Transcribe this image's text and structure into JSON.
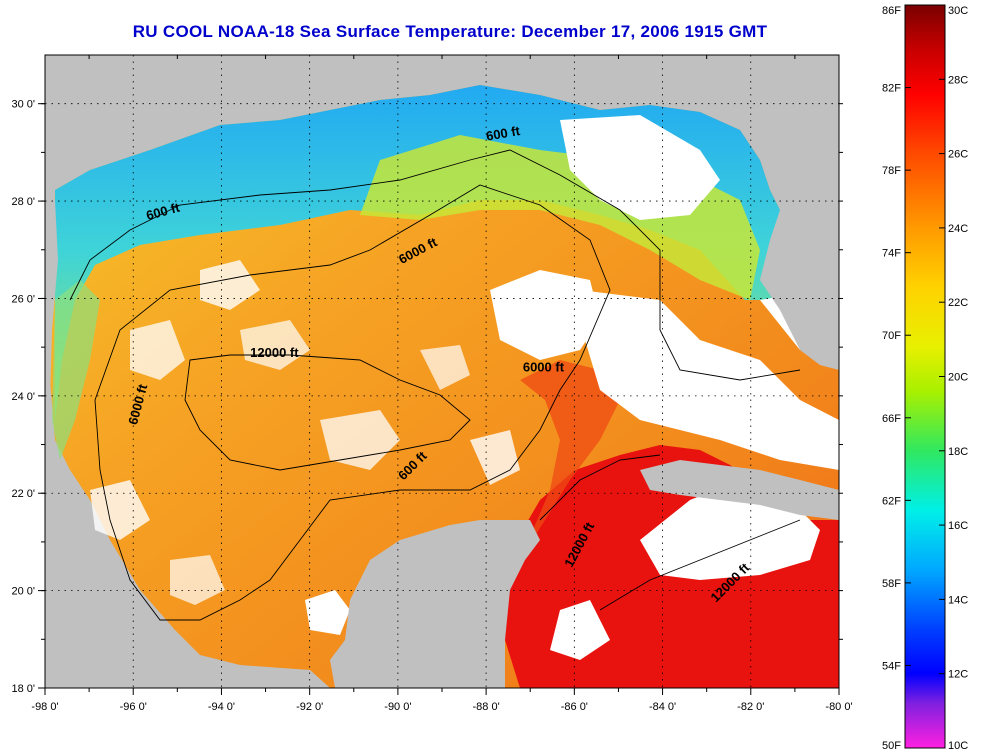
{
  "title": "RU COOL  NOAA-18  Sea Surface Temperature:  December 17, 2006 1915 GMT",
  "map": {
    "lon_range": [
      -98,
      -80
    ],
    "lat_range": [
      18,
      31
    ],
    "x_ticks": [
      "-98 0'",
      "-96 0'",
      "-94 0'",
      "-92 0'",
      "-90 0'",
      "-88 0'",
      "-86 0'",
      "-84 0'",
      "-82 0'",
      "-80 0'"
    ],
    "y_ticks": [
      "18 0'",
      "20 0'",
      "22 0'",
      "24 0'",
      "26 0'",
      "28 0'",
      "30 0'"
    ],
    "grid": "dotted",
    "contour_labels": [
      {
        "text": "600 ft",
        "lon": -87.6,
        "lat": 29.3,
        "angle": -10
      },
      {
        "text": "600 ft",
        "lon": -95.3,
        "lat": 27.7,
        "angle": -15
      },
      {
        "text": "6000 ft",
        "lon": -89.5,
        "lat": 26.9,
        "angle": -28
      },
      {
        "text": "12000 ft",
        "lon": -92.8,
        "lat": 24.8,
        "angle": 0
      },
      {
        "text": "6000 ft",
        "lon": -86.7,
        "lat": 24.5,
        "angle": 0
      },
      {
        "text": "6000 ft",
        "lon": -95.8,
        "lat": 23.8,
        "angle": -75
      },
      {
        "text": "600 ft",
        "lon": -89.6,
        "lat": 22.5,
        "angle": -45
      },
      {
        "text": "12000 ft",
        "lon": -85.8,
        "lat": 20.9,
        "angle": -62
      },
      {
        "text": "12000 ft",
        "lon": -82.4,
        "lat": 20.1,
        "angle": -45
      }
    ]
  },
  "colorbar": {
    "f_labels": [
      "86F",
      "82F",
      "78F",
      "74F",
      "70F",
      "66F",
      "62F",
      "58F",
      "54F",
      "50F"
    ],
    "c_labels": [
      "30C",
      "28C",
      "26C",
      "24C",
      "22C",
      "20C",
      "18C",
      "16C",
      "14C",
      "12C",
      "10C"
    ],
    "range_c": [
      10,
      30
    ],
    "colors": {
      "land": "#c0c0c0",
      "cloud": "#ffffff",
      "water_warm": "#f39a1e",
      "water_hot": "#e8120e",
      "water_cool": "#c8e832",
      "water_cold": "#1ab8f0"
    }
  }
}
